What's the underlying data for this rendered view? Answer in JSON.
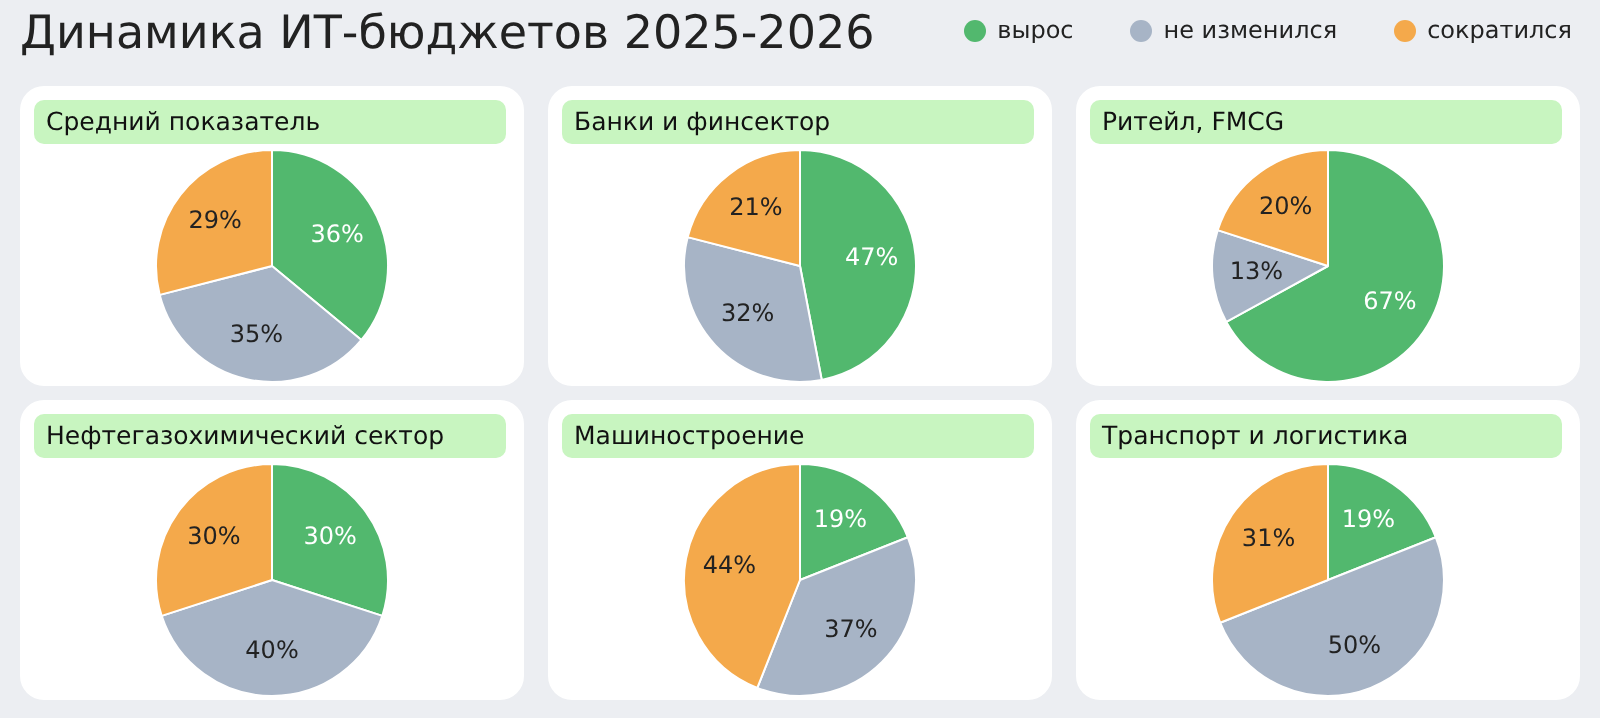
{
  "chart_data": [
    {
      "type": "pie",
      "title": "Средний показатель",
      "annotations": [
        "Динамика ИТ-бюджетов 2025-2026"
      ],
      "legend": "top right",
      "categories": [
        "вырос",
        "не изменился",
        "сократился"
      ],
      "values": [
        36,
        35,
        29
      ],
      "value_labels": [
        "36%",
        "35%",
        "29%"
      ],
      "colors": [
        "#52b86e",
        "#a7b4c6",
        "#f4a94b"
      ]
    },
    {
      "type": "pie",
      "title": "Банки и финсектор",
      "categories": [
        null,
        null,
        null
      ],
      "values": [
        47,
        32,
        21
      ],
      "value_labels": [
        "47%",
        "32%",
        "21%"
      ],
      "colors": [
        "#52b86e",
        "#a7b4c6",
        "#f4a94b"
      ]
    },
    {
      "type": "pie",
      "title": "Ритейл, FMCG",
      "categories": [
        null,
        null,
        null
      ],
      "values": [
        67,
        13,
        20
      ],
      "value_labels": [
        "67%",
        "13%",
        "20%"
      ],
      "colors": [
        "#52b86e",
        "#a7b4c6",
        "#f4a94b"
      ]
    },
    {
      "type": "pie",
      "title": "Нефтегазохимический сектор",
      "categories": [
        null,
        null,
        null
      ],
      "values": [
        30,
        40,
        30
      ],
      "value_labels": [
        "30%",
        "40%",
        "30%"
      ],
      "colors": [
        "#52b86e",
        "#a7b4c6",
        "#f4a94b"
      ]
    },
    {
      "type": "pie",
      "title": "Машиностроение",
      "categories": [
        null,
        null,
        null
      ],
      "values": [
        19,
        37,
        44
      ],
      "value_labels": [
        "19%",
        "37%",
        "44%"
      ],
      "colors": [
        "#52b86e",
        "#a7b4c6",
        "#f4a94b"
      ]
    },
    {
      "type": "pie",
      "title": "Транспорт и логистика",
      "categories": [
        null,
        null,
        null
      ],
      "values": [
        19,
        50,
        31
      ],
      "value_labels": [
        "19%",
        "50%",
        "31%"
      ],
      "colors": [
        "#52b86e",
        "#a7b4c6",
        "#f4a94b"
      ]
    }
  ]
}
